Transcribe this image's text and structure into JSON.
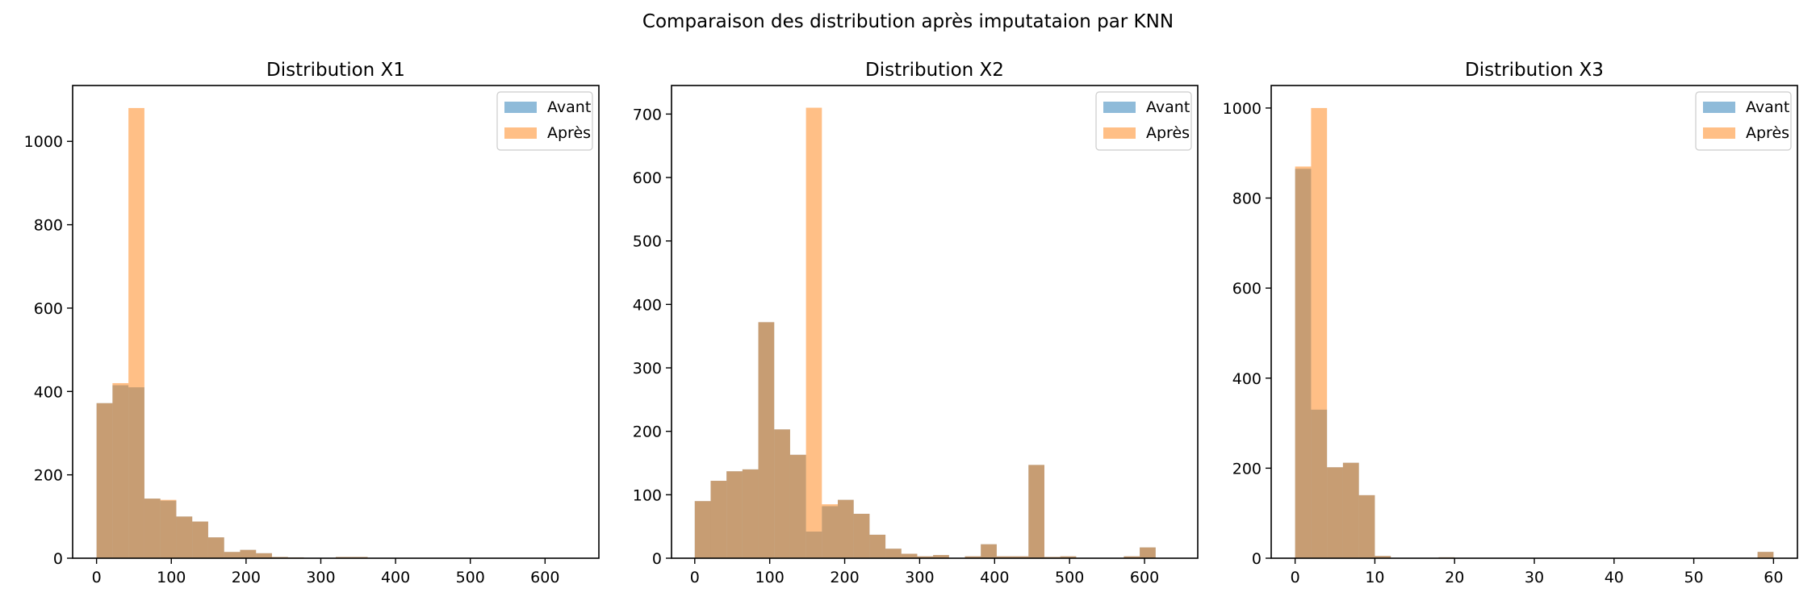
{
  "suptitle": "Comparaison des distribution après imputataion par KNN",
  "colors": {
    "avant": "#1f77b4",
    "apres": "#ff7f0e"
  },
  "chart_data": [
    {
      "type": "bar",
      "title": "Distribution X1",
      "xlabel": "",
      "ylabel": "",
      "xlim": [
        -32,
        672
      ],
      "ylim": [
        0,
        1134
      ],
      "xticks": [
        0,
        100,
        200,
        300,
        400,
        500,
        600
      ],
      "yticks": [
        0,
        200,
        400,
        600,
        800,
        1000
      ],
      "bin_edges": [
        0,
        21.33,
        42.67,
        64,
        85.33,
        106.67,
        128,
        149.33,
        170.67,
        192,
        213.33,
        234.67,
        256,
        277.33,
        298.67,
        320,
        341.33,
        362.67,
        384,
        405.33,
        426.67,
        448,
        469.33,
        490.67,
        512,
        533.33,
        554.67,
        576,
        597.33,
        618.67,
        640
      ],
      "grid": false,
      "legend_position": "top-right",
      "series": [
        {
          "name": "Avant",
          "values": [
            372,
            415,
            410,
            143,
            138,
            100,
            88,
            50,
            15,
            20,
            12,
            3,
            2,
            0,
            0,
            3,
            3,
            0,
            0,
            0,
            0,
            0,
            0,
            0,
            0,
            0,
            0,
            0,
            0,
            1
          ]
        },
        {
          "name": "Après",
          "values": [
            372,
            420,
            1080,
            143,
            140,
            100,
            88,
            50,
            15,
            20,
            12,
            3,
            2,
            0,
            0,
            3,
            3,
            0,
            0,
            0,
            0,
            0,
            0,
            0,
            0,
            0,
            0,
            0,
            0,
            1
          ]
        }
      ]
    },
    {
      "type": "bar",
      "title": "Distribution X2",
      "xlabel": "",
      "ylabel": "",
      "xlim": [
        -31,
        671
      ],
      "ylim": [
        0,
        745
      ],
      "xticks": [
        0,
        100,
        200,
        300,
        400,
        500,
        600
      ],
      "yticks": [
        0,
        100,
        200,
        300,
        400,
        500,
        600,
        700
      ],
      "bin_edges": [
        0,
        21.2,
        42.4,
        63.6,
        84.8,
        106,
        127.2,
        148.4,
        169.6,
        190.8,
        212,
        233.2,
        254.4,
        275.6,
        296.8,
        318,
        339.2,
        360.4,
        381.6,
        402.8,
        424,
        445.2,
        466.4,
        487.6,
        508.8,
        530,
        551.2,
        572.4,
        593.6,
        614.8,
        636
      ],
      "grid": false,
      "legend_position": "top-right",
      "series": [
        {
          "name": "Avant",
          "values": [
            90,
            122,
            137,
            140,
            372,
            203,
            163,
            42,
            82,
            92,
            70,
            37,
            15,
            7,
            3,
            5,
            0,
            3,
            22,
            3,
            3,
            147,
            2,
            3,
            0,
            0,
            0,
            3,
            17,
            0
          ]
        },
        {
          "name": "Après",
          "values": [
            90,
            122,
            137,
            140,
            372,
            203,
            163,
            710,
            85,
            92,
            70,
            37,
            15,
            7,
            3,
            5,
            0,
            3,
            22,
            3,
            3,
            147,
            2,
            3,
            0,
            0,
            0,
            3,
            17,
            0
          ]
        }
      ]
    },
    {
      "type": "bar",
      "title": "Distribution X3",
      "xlabel": "",
      "ylabel": "",
      "xlim": [
        -3,
        63
      ],
      "ylim": [
        0,
        1050
      ],
      "xticks": [
        0,
        10,
        20,
        30,
        40,
        50,
        60
      ],
      "yticks": [
        0,
        200,
        400,
        600,
        800,
        1000
      ],
      "bin_edges": [
        0,
        2,
        4,
        6,
        8,
        10,
        12,
        14,
        16,
        18,
        20,
        22,
        24,
        26,
        28,
        30,
        32,
        34,
        36,
        38,
        40,
        42,
        44,
        46,
        48,
        50,
        52,
        54,
        56,
        58,
        60
      ],
      "grid": false,
      "legend_position": "top-right",
      "series": [
        {
          "name": "Avant",
          "values": [
            865,
            330,
            202,
            212,
            140,
            5,
            0,
            0,
            0,
            2,
            0,
            0,
            0,
            0,
            0,
            0,
            0,
            0,
            0,
            0,
            0,
            0,
            0,
            0,
            0,
            0,
            0,
            0,
            0,
            14
          ]
        },
        {
          "name": "Après",
          "values": [
            870,
            1000,
            202,
            212,
            140,
            5,
            0,
            0,
            0,
            2,
            0,
            0,
            0,
            0,
            0,
            0,
            0,
            0,
            0,
            0,
            0,
            0,
            0,
            0,
            0,
            0,
            0,
            0,
            0,
            14
          ]
        }
      ]
    }
  ]
}
